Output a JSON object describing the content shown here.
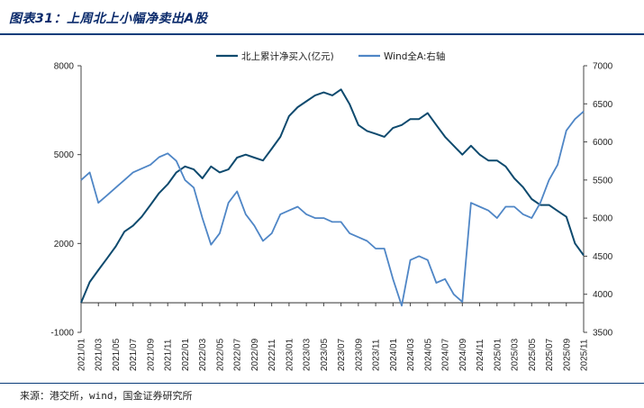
{
  "header": {
    "title": "图表31：上周北上小幅净卖出A股"
  },
  "footer": {
    "source": "来源：港交所，wind，国金证券研究所"
  },
  "colors": {
    "series1": "#0e4a6e",
    "series2": "#4f86c6",
    "rule": "#0a3d7a",
    "title": "#0a2a6b"
  },
  "chart_data": {
    "type": "line",
    "title": "",
    "legend_position": "top-center",
    "grid": false,
    "x_tick_labels": [
      "2021/01",
      "2021/03",
      "2021/05",
      "2021/07",
      "2021/09",
      "2021/11",
      "2022/01",
      "2022/03",
      "2022/05",
      "2022/07",
      "2022/09",
      "2022/11",
      "2023/01",
      "2023/03",
      "2023/05",
      "2023/07",
      "2023/09",
      "2023/11",
      "2024/01",
      "2024/03",
      "2024/05",
      "2024/07",
      "2024/09",
      "2024/11",
      "2025/01",
      "2025/03",
      "2025/05",
      "2025/07",
      "2025/09",
      "2025/11"
    ],
    "y_left": {
      "min": -1000,
      "max": 8000,
      "ticks": [
        -1000,
        2000,
        5000,
        8000
      ]
    },
    "y_right": {
      "min": 3500,
      "max": 7000,
      "ticks": [
        3500,
        4000,
        4500,
        5000,
        5500,
        6000,
        6500,
        7000
      ]
    },
    "series": [
      {
        "name": "北上累计净买入(亿元)",
        "axis": "left",
        "x": [
          "2021/01",
          "2021/02",
          "2021/03",
          "2021/04",
          "2021/05",
          "2021/06",
          "2021/07",
          "2021/08",
          "2021/09",
          "2021/10",
          "2021/11",
          "2021/12",
          "2022/01",
          "2022/02",
          "2022/03",
          "2022/04",
          "2022/05",
          "2022/06",
          "2022/07",
          "2022/08",
          "2022/09",
          "2022/10",
          "2022/11",
          "2022/12",
          "2023/01",
          "2023/02",
          "2023/03",
          "2023/04",
          "2023/05",
          "2023/06",
          "2023/07",
          "2023/08",
          "2023/09",
          "2023/10",
          "2023/11",
          "2023/12",
          "2024/01",
          "2024/02",
          "2024/03",
          "2024/04",
          "2024/05",
          "2024/06",
          "2024/07",
          "2024/08",
          "2024/09",
          "2024/10",
          "2024/11",
          "2024/12",
          "2025/01",
          "2025/02",
          "2025/03",
          "2025/04",
          "2025/05",
          "2025/06",
          "2025/07",
          "2025/08",
          "2025/09",
          "2025/10",
          "2025/11"
        ],
        "values": [
          0,
          700,
          1100,
          1500,
          1900,
          2400,
          2600,
          2900,
          3300,
          3700,
          4000,
          4400,
          4600,
          4500,
          4200,
          4600,
          4400,
          4500,
          4900,
          5000,
          4900,
          4800,
          5200,
          5600,
          6300,
          6600,
          6800,
          7000,
          7100,
          7000,
          7200,
          6700,
          6000,
          5800,
          5700,
          5600,
          5900,
          6000,
          6200,
          6200,
          6400,
          6000,
          5600,
          5300,
          5000,
          5300,
          5000,
          4800,
          4800,
          4600,
          4200,
          3900,
          3500,
          3300,
          3300,
          3100,
          2900,
          2000,
          1600
        ]
      },
      {
        "name": "Wind全A:右轴",
        "axis": "right",
        "x": [
          "2021/01",
          "2021/02",
          "2021/03",
          "2021/04",
          "2021/05",
          "2021/06",
          "2021/07",
          "2021/08",
          "2021/09",
          "2021/10",
          "2021/11",
          "2021/12",
          "2022/01",
          "2022/02",
          "2022/03",
          "2022/04",
          "2022/05",
          "2022/06",
          "2022/07",
          "2022/08",
          "2022/09",
          "2022/10",
          "2022/11",
          "2022/12",
          "2023/01",
          "2023/02",
          "2023/03",
          "2023/04",
          "2023/05",
          "2023/06",
          "2023/07",
          "2023/08",
          "2023/09",
          "2023/10",
          "2023/11",
          "2023/12",
          "2024/01",
          "2024/02",
          "2024/03",
          "2024/04",
          "2024/05",
          "2024/06",
          "2024/07",
          "2024/08",
          "2024/09",
          "2024/10",
          "2024/11",
          "2024/12",
          "2025/01",
          "2025/02",
          "2025/03",
          "2025/04",
          "2025/05",
          "2025/06",
          "2025/07",
          "2025/08",
          "2025/09",
          "2025/10",
          "2025/11"
        ],
        "values": [
          5500,
          5600,
          5200,
          5300,
          5400,
          5500,
          5600,
          5650,
          5700,
          5800,
          5850,
          5750,
          5500,
          5400,
          5000,
          4650,
          4800,
          5200,
          5350,
          5050,
          4900,
          4700,
          4800,
          5050,
          5100,
          5150,
          5050,
          5000,
          5000,
          4950,
          4950,
          4800,
          4750,
          4700,
          4600,
          4600,
          4200,
          3850,
          4450,
          4500,
          4450,
          4150,
          4200,
          4000,
          3900,
          5200,
          5150,
          5100,
          5000,
          5150,
          5150,
          5050,
          5000,
          5200,
          5500,
          5700,
          6150,
          6300,
          6400
        ]
      }
    ]
  }
}
